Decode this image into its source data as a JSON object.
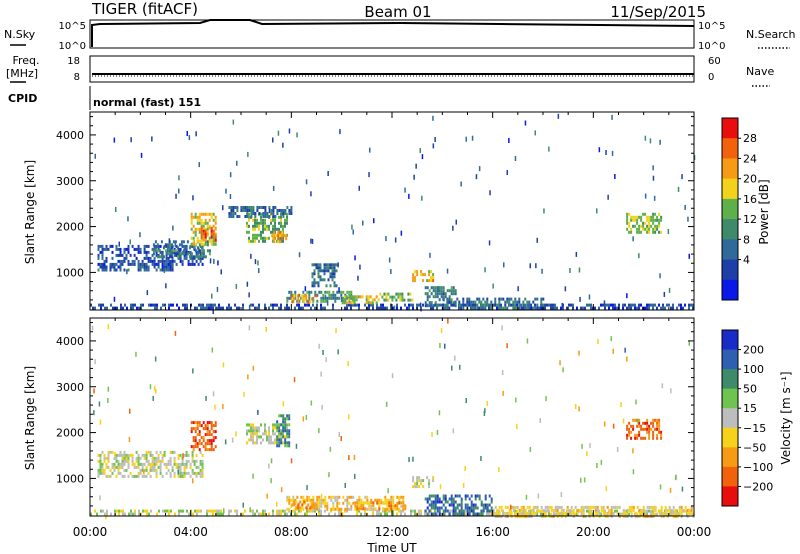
{
  "header": {
    "radar": "TIGER (fitACF)",
    "beam": "Beam 01",
    "date": "11/Sep/2015"
  },
  "status_panels": {
    "nsky_label": "N.Sky",
    "nsearch_label": "N.Search",
    "nsky_ticks": [
      "10^5",
      "10^0"
    ],
    "freq_label_1": "Freq.",
    "freq_label_2": "[MHz]",
    "freq_ticks": [
      "18",
      "8"
    ],
    "nave_label": "Nave",
    "nave_ticks": [
      "60",
      "0"
    ],
    "cpid_label": "CPID",
    "cpid_text": "normal (fast) 151"
  },
  "colors": {
    "power_scale": [
      "#0a18e8",
      "#1f3fa8",
      "#2f6a9a",
      "#3f8a6a",
      "#5fb04a",
      "#f2d21a",
      "#f79a14",
      "#f2620c",
      "#e80e0e"
    ],
    "velocity_scale": [
      "#1a2cc8",
      "#2f5fb0",
      "#3f8a6a",
      "#6fc44f",
      "#bdbdbd",
      "#f7d21a",
      "#f79a14",
      "#f2620c",
      "#e80e0e"
    ]
  },
  "chart_data": [
    {
      "type": "heatmap",
      "panel": "power",
      "ylabel": "Slant Range [km]",
      "ylim": [
        180,
        4500
      ],
      "xlim": [
        "00:00",
        "24:00"
      ],
      "yticks": [
        "1000",
        "2000",
        "3000",
        "4000"
      ],
      "colorbar_label": "Power [dB]",
      "colorbar_ticks": [
        "28",
        "24",
        "20",
        "16",
        "12",
        "8",
        "4"
      ],
      "colorbar_range": [
        0,
        30
      ],
      "features": [
        {
          "t0": 0.0,
          "t1": 24.0,
          "r0": 200,
          "r1": 320,
          "v": 6
        },
        {
          "t0": 0.3,
          "t1": 3.3,
          "r0": 1050,
          "r1": 1150,
          "v": 7
        },
        {
          "t0": 0.3,
          "t1": 4.5,
          "r0": 1150,
          "r1": 1600,
          "v": 6
        },
        {
          "t0": 2.5,
          "t1": 4.8,
          "r0": 1350,
          "r1": 1700,
          "v": 10
        },
        {
          "t0": 4.0,
          "t1": 5.0,
          "r0": 1600,
          "r1": 2300,
          "v": 18
        },
        {
          "t0": 4.4,
          "t1": 5.0,
          "r0": 1700,
          "r1": 2000,
          "v": 25
        },
        {
          "t0": 6.2,
          "t1": 7.8,
          "r0": 1700,
          "r1": 2300,
          "v": 14
        },
        {
          "t0": 7.2,
          "t1": 7.8,
          "r0": 1700,
          "r1": 1900,
          "v": 22
        },
        {
          "t0": 5.5,
          "t1": 8.0,
          "r0": 2200,
          "r1": 2450,
          "v": 8
        },
        {
          "t0": 7.8,
          "t1": 10.5,
          "r0": 360,
          "r1": 600,
          "v": 12
        },
        {
          "t0": 8.0,
          "t1": 9.0,
          "r0": 380,
          "r1": 520,
          "v": 22
        },
        {
          "t0": 10.0,
          "t1": 11.5,
          "r0": 350,
          "r1": 500,
          "v": 18
        },
        {
          "t0": 11.5,
          "t1": 12.8,
          "r0": 400,
          "r1": 560,
          "v": 14
        },
        {
          "t0": 8.8,
          "t1": 9.8,
          "r0": 700,
          "r1": 1200,
          "v": 9
        },
        {
          "t0": 12.8,
          "t1": 13.6,
          "r0": 850,
          "r1": 1050,
          "v": 20
        },
        {
          "t0": 13.3,
          "t1": 14.5,
          "r0": 300,
          "r1": 700,
          "v": 10
        },
        {
          "t0": 14.0,
          "t1": 18.0,
          "r0": 250,
          "r1": 450,
          "v": 9
        },
        {
          "t0": 21.3,
          "t1": 22.7,
          "r0": 1850,
          "r1": 2300,
          "v": 16
        }
      ]
    },
    {
      "type": "heatmap",
      "panel": "velocity",
      "ylabel": "Slant Range [km]",
      "ylim": [
        180,
        4500
      ],
      "xlim": [
        "00:00",
        "24:00"
      ],
      "yticks": [
        "1000",
        "2000",
        "3000",
        "4000"
      ],
      "xticks": [
        "00:00",
        "04:00",
        "08:00",
        "12:00",
        "16:00",
        "20:00",
        "00:00"
      ],
      "xlabel": "Time UT",
      "colorbar_label": "Velocity [m s⁻¹]",
      "colorbar_ticks": [
        "200",
        "100",
        "50",
        "15",
        "−15",
        "−50",
        "−100",
        "−200"
      ],
      "colorbar_range": [
        -250,
        250
      ],
      "features": [
        {
          "t0": 0.0,
          "t1": 24.0,
          "r0": 200,
          "r1": 320,
          "v": 0
        },
        {
          "t0": 0.3,
          "t1": 4.5,
          "r0": 1050,
          "r1": 1600,
          "v": 0
        },
        {
          "t0": 4.0,
          "t1": 5.0,
          "r0": 1650,
          "r1": 2250,
          "v": -180
        },
        {
          "t0": 6.2,
          "t1": 7.8,
          "r0": 1750,
          "r1": 2200,
          "v": 0
        },
        {
          "t0": 7.4,
          "t1": 7.9,
          "r0": 1700,
          "r1": 2400,
          "v": 120
        },
        {
          "t0": 7.8,
          "t1": 12.5,
          "r0": 350,
          "r1": 620,
          "v": -60
        },
        {
          "t0": 8.0,
          "t1": 9.0,
          "r0": 380,
          "r1": 520,
          "v": -130
        },
        {
          "t0": 10.5,
          "t1": 12.5,
          "r0": 350,
          "r1": 500,
          "v": -110
        },
        {
          "t0": 12.8,
          "t1": 13.6,
          "r0": 850,
          "r1": 1050,
          "v": 0
        },
        {
          "t0": 13.3,
          "t1": 16.0,
          "r0": 250,
          "r1": 650,
          "v": 150
        },
        {
          "t0": 16.0,
          "t1": 24.0,
          "r0": 200,
          "r1": 400,
          "v": -40
        },
        {
          "t0": 21.3,
          "t1": 22.7,
          "r0": 1850,
          "r1": 2300,
          "v": -150
        }
      ]
    }
  ]
}
